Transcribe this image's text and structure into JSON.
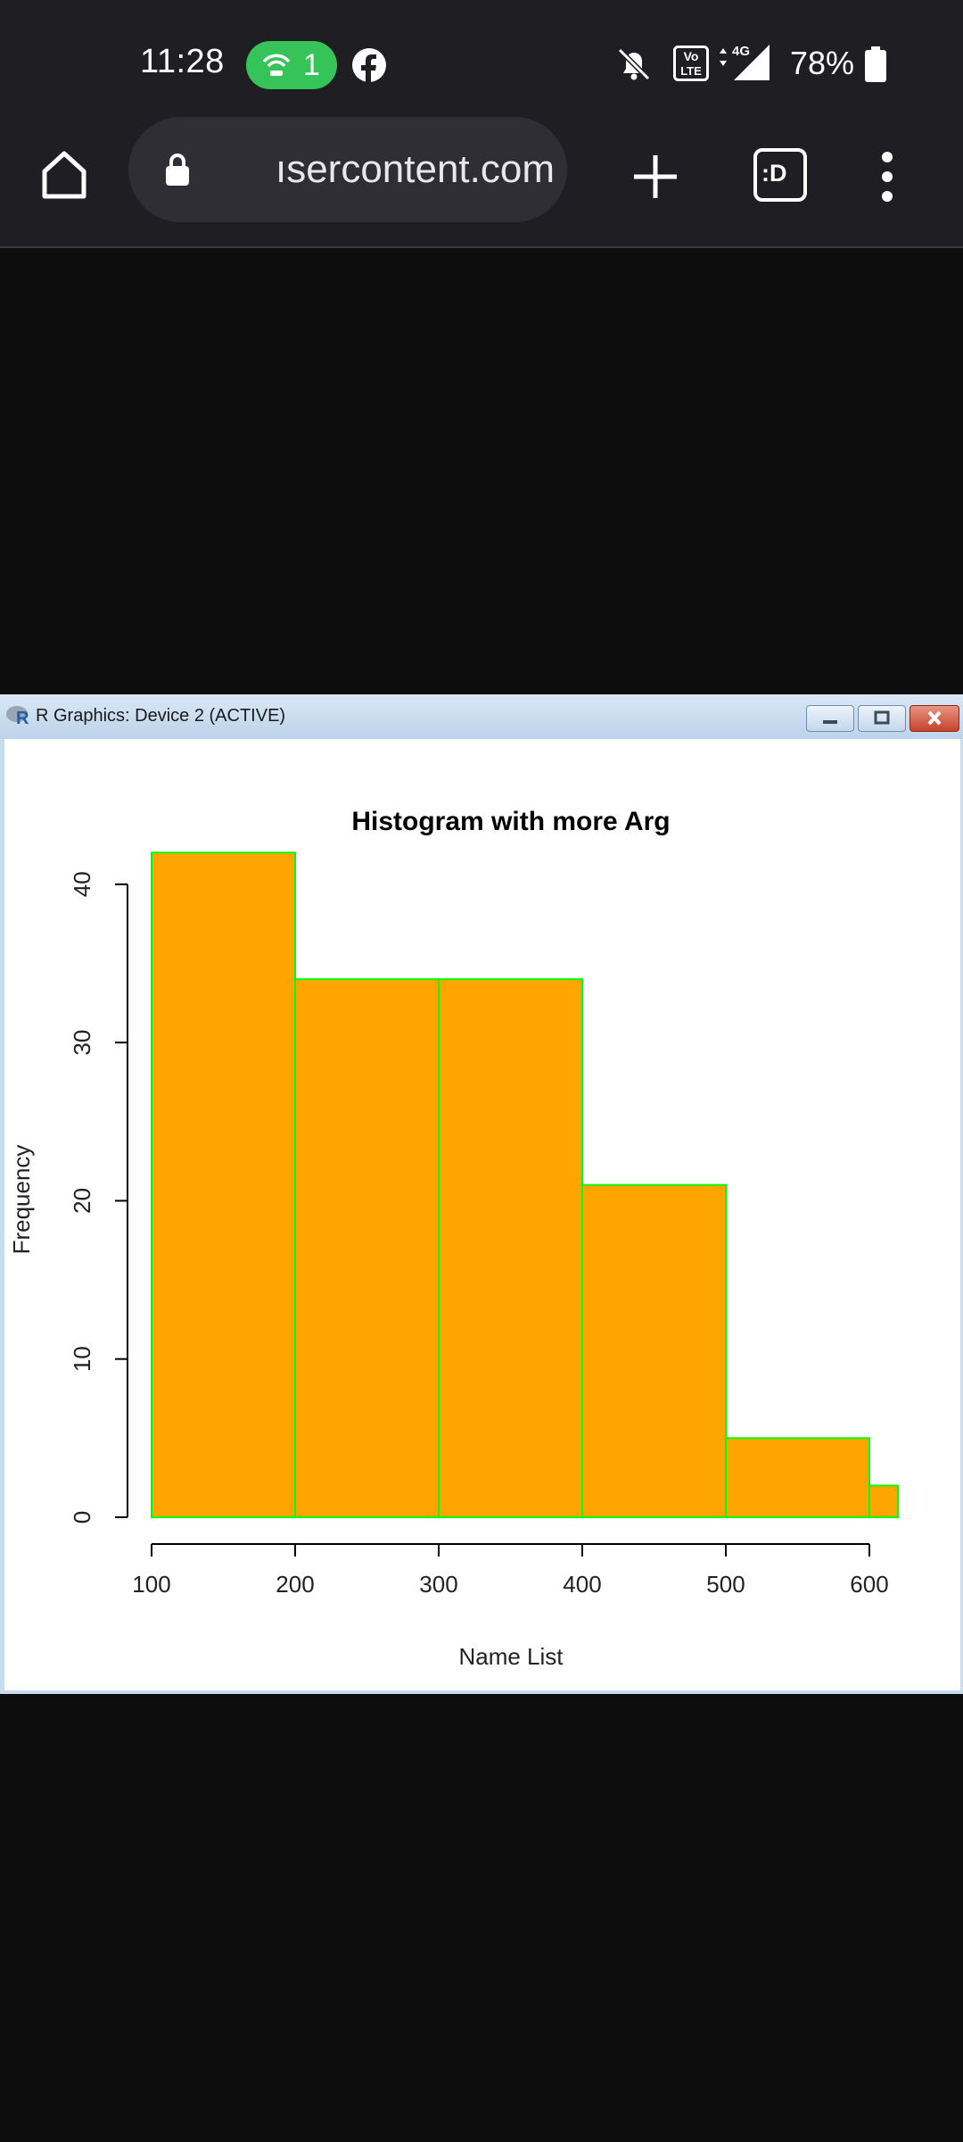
{
  "status_bar": {
    "time": "11:28",
    "hotspot_count": "1",
    "battery": "78%",
    "icons": [
      "hotspot-icon",
      "facebook-icon",
      "bell-off-icon",
      "volte-icon",
      "signal-4g-icon",
      "battery-icon"
    ]
  },
  "browser": {
    "url": "ısercontent.com",
    "icons": [
      "home-icon",
      "lock-icon",
      "plus-icon",
      "tab-switcher-icon",
      "more-vert-icon"
    ],
    "tab_icon_label": ":D"
  },
  "rwindow": {
    "title": "R Graphics: Device 2 (ACTIVE)"
  },
  "chart_data": {
    "type": "bar",
    "title": "Histogram with more Arg",
    "xlabel": "Name List",
    "ylabel": "Frequency",
    "bins": [
      {
        "from": 100,
        "to": 200,
        "count": 42
      },
      {
        "from": 200,
        "to": 300,
        "count": 34
      },
      {
        "from": 300,
        "to": 400,
        "count": 34
      },
      {
        "from": 400,
        "to": 500,
        "count": 21
      },
      {
        "from": 500,
        "to": 600,
        "count": 5
      },
      {
        "from": 600,
        "to": 620,
        "count": 2
      }
    ],
    "x_ticks": [
      100,
      200,
      300,
      400,
      500,
      600
    ],
    "y_ticks": [
      0,
      10,
      20,
      30,
      40
    ],
    "xlim": [
      100,
      620
    ],
    "ylim": [
      0,
      42
    ],
    "colors": {
      "fill": "#ffa500",
      "border": "#00ff00"
    }
  }
}
